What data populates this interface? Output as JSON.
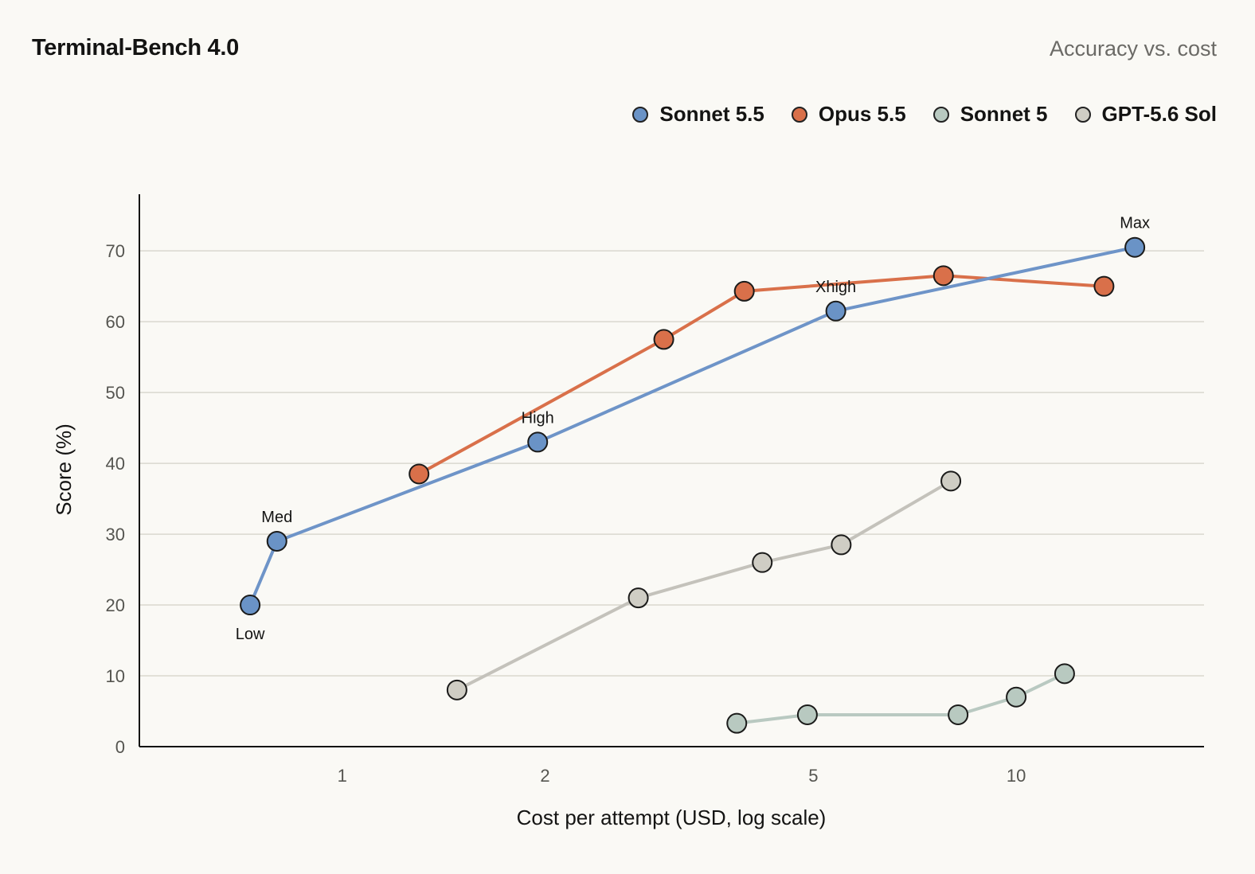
{
  "header": {
    "title": "Terminal-Bench 4.0",
    "subtitle": "Accuracy vs. cost"
  },
  "chart_data": {
    "type": "line",
    "title": "Terminal-Bench 4.0",
    "subtitle": "Accuracy vs. cost",
    "xlabel": "Cost per attempt (USD, log scale)",
    "ylabel": "Score (%)",
    "x_scale": "log",
    "xlim": [
      0.5,
      19
    ],
    "ylim": [
      0,
      78
    ],
    "xticks": [
      1,
      2,
      5,
      10
    ],
    "xtick_labels": [
      "1",
      "2",
      "5",
      "10"
    ],
    "yticks": [
      0,
      10,
      20,
      30,
      40,
      50,
      60,
      70
    ],
    "ytick_labels": [
      "0",
      "10",
      "20",
      "30",
      "40",
      "50",
      "60",
      "70"
    ],
    "grid": "horizontal",
    "legend_position": "top-right",
    "series": [
      {
        "name": "Sonnet 5.5",
        "color": "#6a93c6",
        "points": [
          {
            "x": 0.73,
            "y": 20.0,
            "label": "Low"
          },
          {
            "x": 0.8,
            "y": 29.0,
            "label": "Med"
          },
          {
            "x": 1.95,
            "y": 43.0,
            "label": "High"
          },
          {
            "x": 5.4,
            "y": 61.5,
            "label": "Xhigh"
          },
          {
            "x": 15.0,
            "y": 70.5,
            "label": "Max"
          }
        ]
      },
      {
        "name": "Opus 5.5",
        "color": "#d9704a",
        "points": [
          {
            "x": 1.3,
            "y": 38.5
          },
          {
            "x": 3.0,
            "y": 57.5
          },
          {
            "x": 3.95,
            "y": 64.3
          },
          {
            "x": 7.8,
            "y": 66.5
          },
          {
            "x": 13.5,
            "y": 65.0
          }
        ]
      },
      {
        "name": "Sonnet 5",
        "color": "#b8c9c0",
        "points": [
          {
            "x": 3.85,
            "y": 3.3
          },
          {
            "x": 4.9,
            "y": 4.5
          },
          {
            "x": 8.2,
            "y": 4.5
          },
          {
            "x": 10.0,
            "y": 7.0
          },
          {
            "x": 11.8,
            "y": 10.3
          }
        ]
      },
      {
        "name": "GPT-5.6 Sol",
        "color": "#cfcdc4",
        "points": [
          {
            "x": 1.48,
            "y": 8.0
          },
          {
            "x": 2.75,
            "y": 21.0
          },
          {
            "x": 4.2,
            "y": 26.0
          },
          {
            "x": 5.5,
            "y": 28.5
          },
          {
            "x": 8.0,
            "y": 37.5
          }
        ]
      }
    ]
  }
}
